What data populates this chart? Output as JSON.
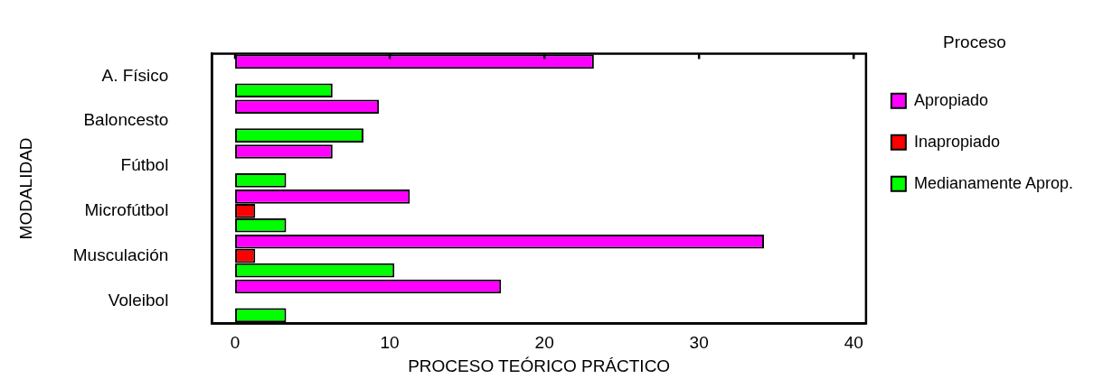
{
  "chart_data": {
    "type": "bar",
    "orientation": "horizontal",
    "xlabel": "PROCESO TEÓRICO PRÁCTICO",
    "ylabel": "MODALIDAD",
    "legend_title": "Proceso",
    "categories": [
      "A. Físico",
      "Baloncesto",
      "Fútbol",
      "Microfútbol",
      "Musculación",
      "Voleibol"
    ],
    "series": [
      {
        "name": "Apropiado",
        "color": "#ff00ff",
        "values": [
          23.2,
          9.3,
          6.3,
          11.3,
          34.2,
          17.2
        ]
      },
      {
        "name": "Inapropiado",
        "color": "#ff0000",
        "values": [
          null,
          null,
          null,
          1.3,
          1.3,
          null
        ]
      },
      {
        "name": "Medianamente Aprop.",
        "color": "#00ff00",
        "values": [
          6.3,
          8.3,
          3.3,
          3.3,
          10.3,
          3.3
        ]
      }
    ],
    "xlim": [
      -1.5,
      40.8
    ],
    "xticks": [
      0,
      10,
      20,
      30,
      40
    ],
    "grid": false,
    "legend": "right"
  }
}
